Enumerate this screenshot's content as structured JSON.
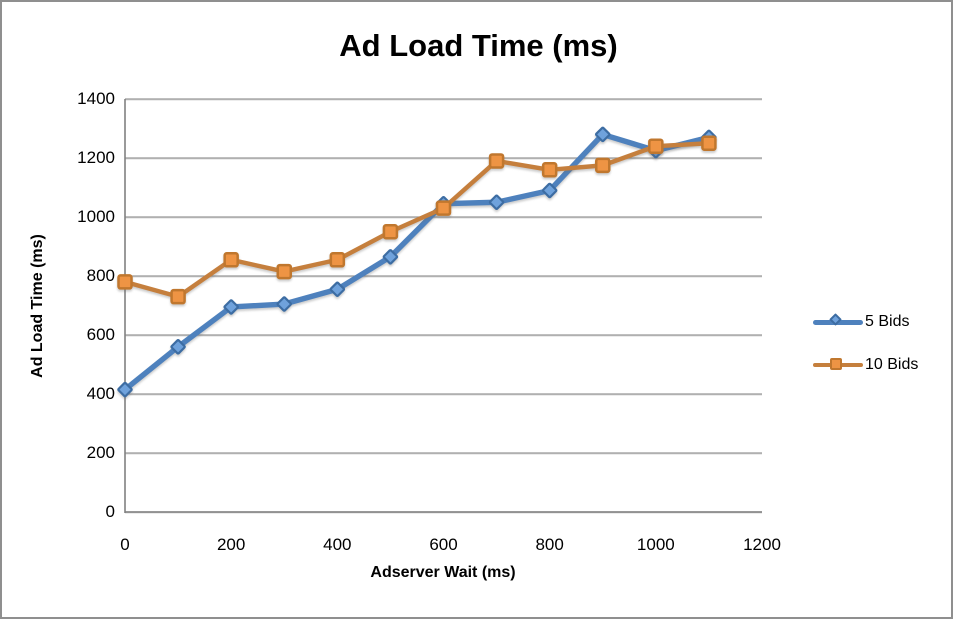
{
  "window": {
    "background": "#ffffff",
    "border_color": "#8f8f8f"
  },
  "colors": {
    "grid": "#999999",
    "grid_shadow": "#d9d9d9",
    "axis": "#808080",
    "text": "#000000"
  },
  "chart_data": {
    "type": "line",
    "title": "Ad Load Time (ms)",
    "xlabel": "Adserver Wait (ms)",
    "ylabel": "Ad Load Time (ms)",
    "x": [
      0,
      100,
      200,
      300,
      400,
      500,
      600,
      700,
      800,
      900,
      1000,
      1100
    ],
    "series": [
      {
        "name": "5 Bids",
        "marker": "diamond",
        "line_color": "#4e81bd",
        "marker_fill": "#6fa2dc",
        "marker_border": "#3d6da3",
        "values": [
          415,
          560,
          695,
          705,
          755,
          865,
          1045,
          1050,
          1090,
          1280,
          1225,
          1270
        ]
      },
      {
        "name": "10 Bids",
        "marker": "square",
        "line_color": "#c57f3d",
        "marker_fill": "#ee9444",
        "marker_border": "#c0772e",
        "values": [
          780,
          730,
          855,
          815,
          855,
          950,
          1030,
          1190,
          1160,
          1175,
          1240,
          1250
        ]
      }
    ],
    "xlim": [
      0,
      1200
    ],
    "ylim": [
      0,
      1400
    ],
    "xticks": [
      0,
      200,
      400,
      600,
      800,
      1000,
      1200
    ],
    "yticks": [
      0,
      200,
      400,
      600,
      800,
      1000,
      1200,
      1400
    ],
    "grid": "horizontal",
    "legend_position": "right"
  }
}
